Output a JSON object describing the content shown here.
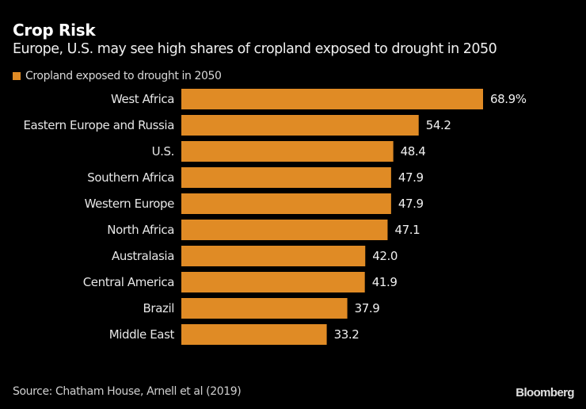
{
  "chart_data": {
    "type": "bar",
    "orientation": "horizontal",
    "title": "Crop Risk",
    "subtitle": "Europe, U.S. may see high shares of cropland exposed to drought in 2050",
    "legend": [
      {
        "label": "Cropland exposed to drought in 2050",
        "color": "#E08B25"
      }
    ],
    "legend_placement": "top-left",
    "categories": [
      "West Africa",
      "Eastern Europe and Russia",
      "U.S.",
      "Southern Africa",
      "Western Europe",
      "North Africa",
      "Australasia",
      "Central America",
      "Brazil",
      "Middle East"
    ],
    "values": [
      68.9,
      54.2,
      48.4,
      47.9,
      47.9,
      47.1,
      42.0,
      41.9,
      37.9,
      33.2
    ],
    "value_labels": [
      "68.9%",
      "54.2",
      "48.4",
      "47.9",
      "47.9",
      "47.1",
      "42.0",
      "41.9",
      "37.9",
      "33.2"
    ],
    "unit": "%",
    "xlim": [
      0,
      68.9
    ],
    "grid": false,
    "xlabel": "",
    "ylabel": "",
    "bar_color": "#E08B25"
  },
  "footer": {
    "source": "Source: Chatham House, Arnell et al (2019)",
    "brand": "Bloomberg"
  }
}
